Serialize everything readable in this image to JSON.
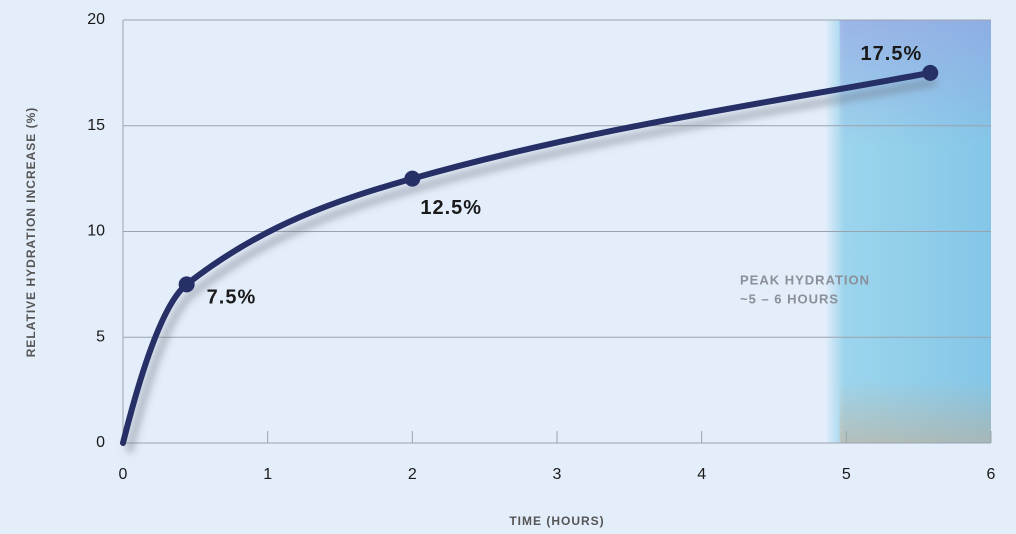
{
  "chart_data": {
    "type": "line",
    "x_label": "TIME (HOURS)",
    "y_label": "RELATIVE HYDRATION INCREASE (%)",
    "series": [
      {
        "color": "#262f66",
        "x": [
          0,
          0.44,
          2,
          5.58
        ],
        "values": [
          0,
          7.5,
          12.5,
          17.5
        ],
        "value_labels": [
          null,
          "7.5%",
          "12.5%",
          "17.5%"
        ]
      }
    ],
    "xlim": [
      0,
      6
    ],
    "xticks": [
      0,
      1,
      2,
      3,
      4,
      5,
      6
    ],
    "ylim": [
      0,
      20
    ],
    "yticks": [
      0,
      5,
      10,
      15,
      20
    ],
    "grid": true,
    "highlight_xlim": [
      4.85,
      6
    ],
    "annotation": [
      "PEAK HYDRATION",
      "~5 – 6 HOURS"
    ]
  }
}
